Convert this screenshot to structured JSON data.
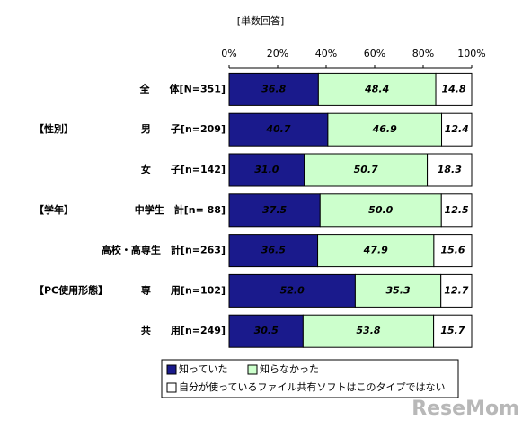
{
  "chart_data": {
    "type": "stacked_barh",
    "note": "[単数回答]",
    "categories": [
      "全　　体[N=351]",
      "男　　子[n=209]",
      "女　　子[n=142]",
      "中学生　計[n= 88]",
      "高校・高専生　計[n=263]",
      "専　　用[n=102]",
      "共　　用[n=249]"
    ],
    "groups": [
      null,
      "【性別】",
      null,
      "【学年】",
      null,
      "【PC使用形態】",
      null
    ],
    "series": [
      {
        "name": "知っていた",
        "color": "#1a1a8c",
        "values": [
          36.8,
          40.7,
          31.0,
          37.5,
          36.5,
          52.0,
          30.5
        ],
        "value_labels": [
          "36.8",
          "40.7",
          "31.0",
          "37.5",
          "36.5",
          "52.0",
          "30.5"
        ]
      },
      {
        "name": "知らなかった",
        "color": "#ccffcc",
        "values": [
          48.4,
          46.9,
          50.7,
          50.0,
          47.9,
          35.3,
          53.8
        ],
        "value_labels": [
          "48.4",
          "46.9",
          "50.7",
          "50.0",
          "47.9",
          "35.3",
          "53.8"
        ]
      },
      {
        "name": "自分が使っているファイル共有ソフトはこのタイプではない",
        "color": "#ffffff",
        "values": [
          14.8,
          12.4,
          18.3,
          12.5,
          15.6,
          12.7,
          15.7
        ],
        "value_labels": [
          "14.8",
          "12.4",
          "18.3",
          "12.5",
          "15.6",
          "12.7",
          "15.7"
        ]
      }
    ],
    "xlim": [
      0,
      100
    ],
    "xticks": [
      {
        "value": 0,
        "label": "0%"
      },
      {
        "value": 20,
        "label": "20%"
      },
      {
        "value": 40,
        "label": "40%"
      },
      {
        "value": 60,
        "label": "60%"
      },
      {
        "value": 80,
        "label": "80%"
      },
      {
        "value": 100,
        "label": "100%"
      }
    ],
    "watermark": "ReseMom"
  }
}
